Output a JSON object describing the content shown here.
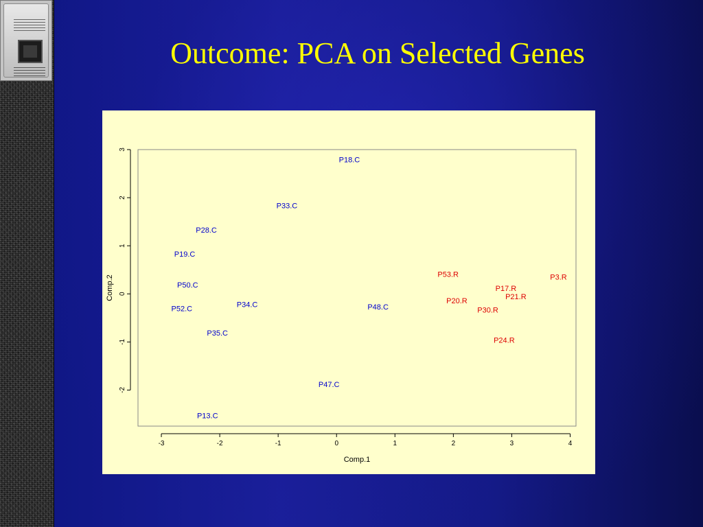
{
  "title": "Outcome: PCA on Selected Genes",
  "colors": {
    "C": "#0000cc",
    "R": "#dd0000",
    "title": "#ffff00",
    "panel": "#ffffcc"
  },
  "chart_data": {
    "type": "scatter",
    "xlabel": "Comp.1",
    "ylabel": "Comp.2",
    "xlim": [
      -3.4,
      4.1
    ],
    "ylim": [
      -2.75,
      3.0
    ],
    "xticks": [
      "-3",
      "-2",
      "-1",
      "0",
      "1",
      "2",
      "3",
      "4"
    ],
    "yticks": [
      "-2",
      "-1",
      "0",
      "1",
      "2",
      "3"
    ],
    "grid": false,
    "points": [
      {
        "label": "P18.C",
        "group": "C",
        "x": 0.22,
        "y": 2.79
      },
      {
        "label": "P33.C",
        "group": "C",
        "x": -0.85,
        "y": 1.84
      },
      {
        "label": "P28.C",
        "group": "C",
        "x": -2.23,
        "y": 1.33
      },
      {
        "label": "P19.C",
        "group": "C",
        "x": -2.6,
        "y": 0.83
      },
      {
        "label": "P50.C",
        "group": "C",
        "x": -2.55,
        "y": 0.19
      },
      {
        "label": "P52.C",
        "group": "C",
        "x": -2.65,
        "y": -0.3
      },
      {
        "label": "P34.C",
        "group": "C",
        "x": -1.53,
        "y": -0.22
      },
      {
        "label": "P35.C",
        "group": "C",
        "x": -2.04,
        "y": -0.81
      },
      {
        "label": "P48.C",
        "group": "C",
        "x": 0.71,
        "y": -0.27
      },
      {
        "label": "P47.C",
        "group": "C",
        "x": -0.13,
        "y": -1.88
      },
      {
        "label": "P13.C",
        "group": "C",
        "x": -2.21,
        "y": -2.53
      },
      {
        "label": "P53.R",
        "group": "R",
        "x": 1.91,
        "y": 0.41
      },
      {
        "label": "P3.R",
        "group": "R",
        "x": 3.8,
        "y": 0.35
      },
      {
        "label": "P17.R",
        "group": "R",
        "x": 2.9,
        "y": 0.12
      },
      {
        "label": "P21.R",
        "group": "R",
        "x": 3.07,
        "y": -0.05
      },
      {
        "label": "P20.R",
        "group": "R",
        "x": 2.06,
        "y": -0.14
      },
      {
        "label": "P30.R",
        "group": "R",
        "x": 2.59,
        "y": -0.33
      },
      {
        "label": "P24.R",
        "group": "R",
        "x": 2.87,
        "y": -0.96
      }
    ]
  }
}
